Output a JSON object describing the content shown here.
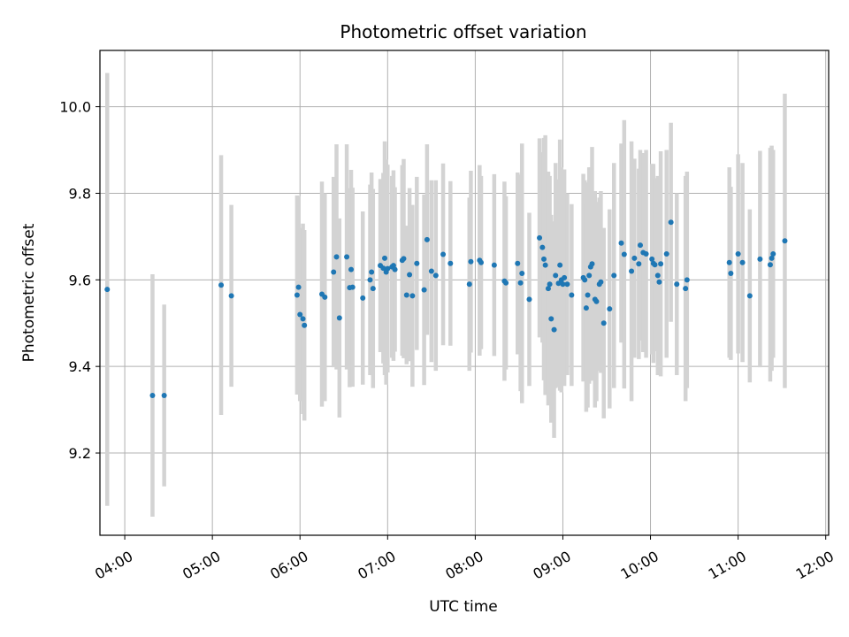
{
  "chart_data": {
    "type": "scatter",
    "title": "Photometric offset variation",
    "xlabel": "UTC time",
    "ylabel": "Photometric offset",
    "xlim": [
      "03:43",
      "12:02"
    ],
    "ylim": [
      9.01,
      10.13
    ],
    "x_ticks": [
      "04:00",
      "05:00",
      "06:00",
      "07:00",
      "08:00",
      "09:00",
      "10:00",
      "11:00",
      "12:00"
    ],
    "y_ticks": [
      9.2,
      9.4,
      9.6,
      9.8,
      10.0
    ],
    "y_tick_labels": [
      "9.2",
      "9.4",
      "9.6",
      "9.8",
      "10.0"
    ],
    "grid": true,
    "legend": "none",
    "colors": {
      "marker": "#1f77b4",
      "errorbar": "#d3d3d3",
      "grid": "#b0b0b0"
    },
    "series": [
      {
        "x": [
          "03:48",
          "04:19",
          "04:27",
          "05:06",
          "05:13",
          "05:58",
          "05:59",
          "06:00",
          "06:02",
          "06:03",
          "06:15",
          "06:17",
          "06:23",
          "06:25",
          "06:27",
          "06:32",
          "06:34",
          "06:35",
          "06:36",
          "06:43",
          "06:48",
          "06:49",
          "06:50",
          "06:55",
          "06:57",
          "06:58",
          "06:59",
          "07:00",
          "07:03",
          "07:04",
          "07:05",
          "07:10",
          "07:11",
          "07:13",
          "07:15",
          "07:17",
          "07:20",
          "07:25",
          "07:27",
          "07:30",
          "07:33",
          "07:38",
          "07:43",
          "07:56",
          "07:57",
          "08:03",
          "08:04",
          "08:13",
          "08:20",
          "08:21",
          "08:29",
          "08:31",
          "08:32",
          "08:37",
          "08:44",
          "08:46",
          "08:47",
          "08:48",
          "08:50",
          "08:51",
          "08:52",
          "08:54",
          "08:55",
          "08:57",
          "08:58",
          "08:59",
          "09:00",
          "09:01",
          "09:03",
          "09:06",
          "09:14",
          "09:15",
          "09:16",
          "09:17",
          "09:18",
          "09:19",
          "09:20",
          "09:22",
          "09:23",
          "09:25",
          "09:26",
          "09:28",
          "09:32",
          "09:35",
          "09:40",
          "09:42",
          "09:47",
          "09:49",
          "09:52",
          "09:53",
          "09:55",
          "09:57",
          "10:01",
          "10:02",
          "10:03",
          "10:05",
          "10:06",
          "10:07",
          "10:11",
          "10:14",
          "10:18",
          "10:24",
          "10:25",
          "10:54",
          "10:55",
          "11:00",
          "11:03",
          "11:08",
          "11:15",
          "11:22",
          "11:23",
          "11:24",
          "11:32"
        ],
        "y": [
          9.578,
          9.333,
          9.333,
          9.588,
          9.563,
          9.565,
          9.583,
          9.52,
          9.51,
          9.495,
          9.567,
          9.56,
          9.618,
          9.653,
          9.512,
          9.653,
          9.582,
          9.624,
          9.583,
          9.558,
          9.6,
          9.618,
          9.58,
          9.633,
          9.627,
          9.65,
          9.618,
          9.626,
          9.63,
          9.633,
          9.624,
          9.645,
          9.649,
          9.565,
          9.612,
          9.563,
          9.638,
          9.577,
          9.693,
          9.62,
          9.61,
          9.659,
          9.638,
          9.59,
          9.642,
          9.645,
          9.64,
          9.634,
          9.597,
          9.593,
          9.638,
          9.593,
          9.615,
          9.555,
          9.697,
          9.675,
          9.648,
          9.634,
          9.58,
          9.59,
          9.51,
          9.485,
          9.61,
          9.592,
          9.634,
          9.6,
          9.59,
          9.605,
          9.59,
          9.565,
          9.605,
          9.6,
          9.535,
          9.565,
          9.61,
          9.63,
          9.637,
          9.555,
          9.55,
          9.59,
          9.595,
          9.5,
          9.533,
          9.61,
          9.685,
          9.659,
          9.62,
          9.65,
          9.637,
          9.68,
          9.663,
          9.66,
          9.648,
          9.638,
          9.635,
          9.61,
          9.595,
          9.637,
          9.66,
          9.733,
          9.59,
          9.58,
          9.6,
          9.64,
          9.615,
          9.66,
          9.64,
          9.563,
          9.648,
          9.635,
          9.65,
          9.66,
          9.69
        ],
        "yerr": [
          0.5,
          0.28,
          0.21,
          0.3,
          0.21,
          0.23,
          0.21,
          0.2,
          0.22,
          0.22,
          0.26,
          0.24,
          0.22,
          0.26,
          0.23,
          0.26,
          0.23,
          0.23,
          0.23,
          0.2,
          0.22,
          0.23,
          0.23,
          0.2,
          0.22,
          0.27,
          0.26,
          0.24,
          0.21,
          0.22,
          0.19,
          0.22,
          0.23,
          0.16,
          0.2,
          0.21,
          0.2,
          0.22,
          0.22,
          0.21,
          0.22,
          0.21,
          0.19,
          0.2,
          0.21,
          0.22,
          0.2,
          0.21,
          0.23,
          0.2,
          0.21,
          0.25,
          0.3,
          0.2,
          0.23,
          0.22,
          0.28,
          0.3,
          0.27,
          0.25,
          0.24,
          0.25,
          0.26,
          0.24,
          0.29,
          0.26,
          0.2,
          0.25,
          0.21,
          0.21,
          0.24,
          0.23,
          0.24,
          0.26,
          0.25,
          0.23,
          0.27,
          0.25,
          0.23,
          0.2,
          0.21,
          0.22,
          0.23,
          0.26,
          0.23,
          0.31,
          0.3,
          0.23,
          0.22,
          0.22,
          0.23,
          0.24,
          0.22,
          0.23,
          0.2,
          0.23,
          0.19,
          0.26,
          0.24,
          0.23,
          0.21,
          0.26,
          0.25,
          0.22,
          0.2,
          0.23,
          0.23,
          0.2,
          0.25,
          0.27,
          0.26,
          0.24,
          0.34
        ]
      }
    ]
  }
}
